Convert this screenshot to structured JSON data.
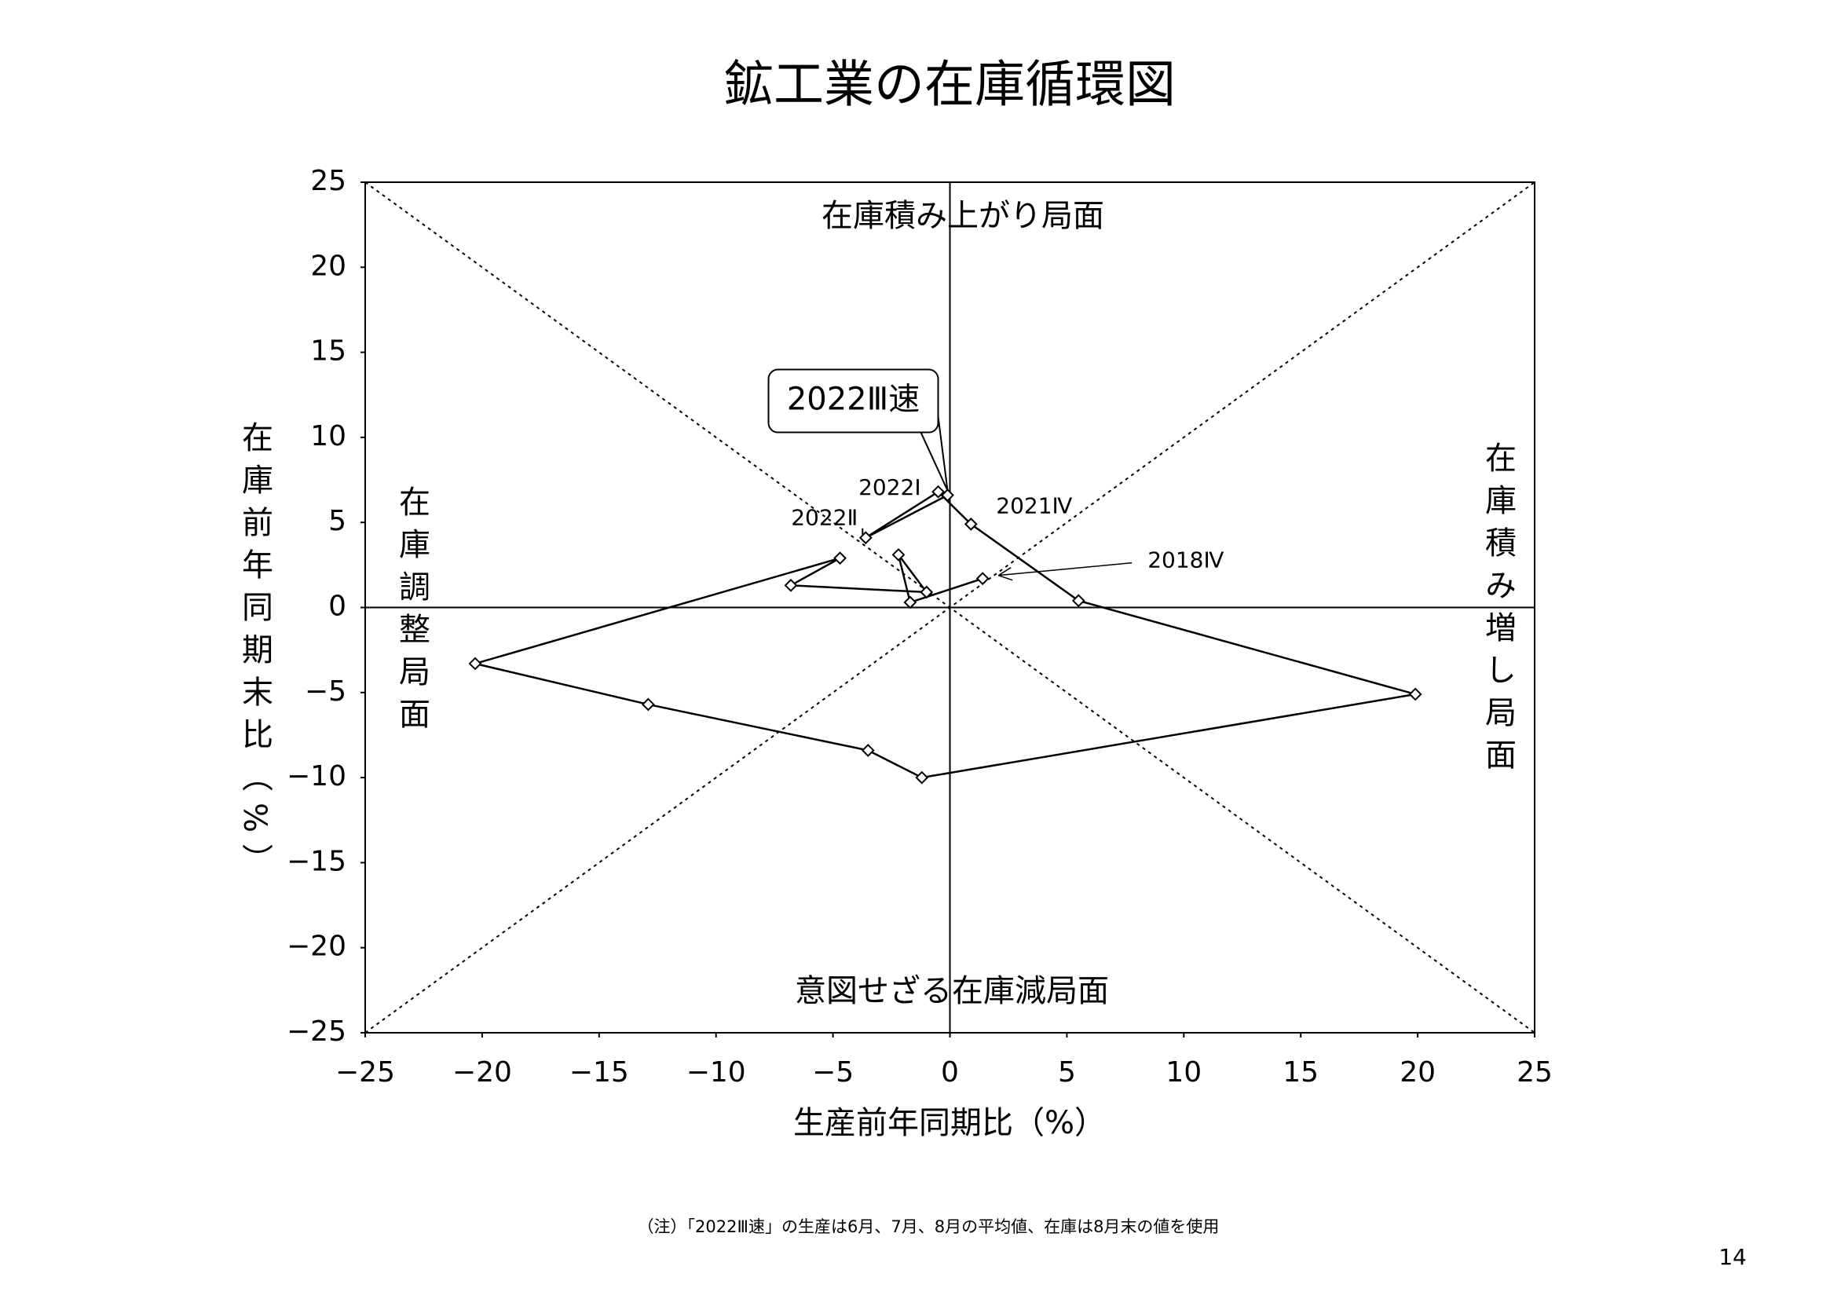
{
  "title": "鉱工業の在庫循環図",
  "chart_data": {
    "type": "line",
    "x_label": "生産前年同期比（%）",
    "y_label": "在庫前年同期末比（%）",
    "x": [
      1.4,
      -1.7,
      -2.2,
      -1.0,
      -6.8,
      -4.7,
      -20.3,
      -12.9,
      -3.5,
      -1.2,
      19.9,
      5.5,
      0.9,
      -0.5,
      -3.6,
      -0.1
    ],
    "y": [
      1.7,
      0.3,
      3.1,
      0.9,
      1.3,
      2.9,
      -3.3,
      -5.7,
      -8.4,
      -10.0,
      -5.1,
      0.4,
      4.9,
      6.8,
      4.1,
      6.6
    ],
    "labels": [
      "2018Ⅳ",
      null,
      null,
      null,
      null,
      null,
      null,
      null,
      null,
      null,
      null,
      null,
      "2021Ⅳ",
      "2022Ⅰ",
      "2022Ⅱ",
      "2022Ⅲ速"
    ],
    "color": "#000000",
    "xlim": [
      -25,
      25
    ],
    "ylim": [
      -25,
      25
    ],
    "xticks": [
      {
        "value": -25,
        "label": "−25"
      },
      {
        "value": -20,
        "label": "−20"
      },
      {
        "value": -15,
        "label": "−15"
      },
      {
        "value": -10,
        "label": "−10"
      },
      {
        "value": -5,
        "label": "−5"
      },
      0,
      5,
      10,
      15,
      20,
      25
    ],
    "yticks": [
      {
        "value": -25,
        "label": "−25"
      },
      {
        "value": -20,
        "label": "−20"
      },
      {
        "value": -15,
        "label": "−15"
      },
      {
        "value": -10,
        "label": "−10"
      },
      {
        "value": -5,
        "label": "−5"
      },
      0,
      5,
      10,
      15,
      20,
      25
    ],
    "quadrant_labels": {
      "top": "在庫積み上がり局面",
      "left": "在庫調整局面",
      "right": "在庫積み増し局面",
      "bottom": "意図せざる在庫減局面"
    }
  },
  "note": "（注）「2022Ⅲ速」の生産は6月、7月、8月の平均値、在庫は8月末の値を使用",
  "page_number": "14"
}
